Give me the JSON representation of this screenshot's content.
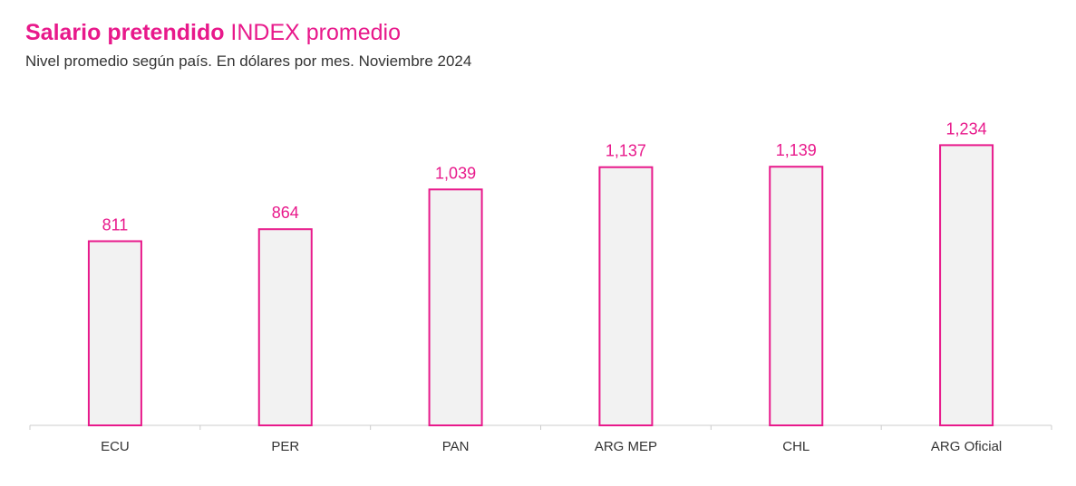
{
  "header": {
    "title_bold": "Salario pretendido",
    "title_rest": " INDEX promedio",
    "subtitle": "Nivel promedio según país. En dólares por mes. Noviembre 2024"
  },
  "colors": {
    "accent": "#e8198b",
    "bar_fill": "#f2f2f2",
    "axis": "#cccccc",
    "label": "#333333"
  },
  "chart_data": {
    "type": "bar",
    "title": "Salario pretendido INDEX promedio",
    "subtitle": "Nivel promedio según país. En dólares por mes. Noviembre 2024",
    "categories": [
      "ECU",
      "PER",
      "PAN",
      "ARG MEP",
      "CHL",
      "ARG Oficial"
    ],
    "values": [
      811,
      864,
      1039,
      1137,
      1139,
      1234
    ],
    "value_labels": [
      "811",
      "864",
      "1,039",
      "1,137",
      "1,139",
      "1,234"
    ],
    "xlabel": "",
    "ylabel": "",
    "ylim": [
      0,
      1400
    ],
    "grid": false,
    "legend": "none"
  }
}
